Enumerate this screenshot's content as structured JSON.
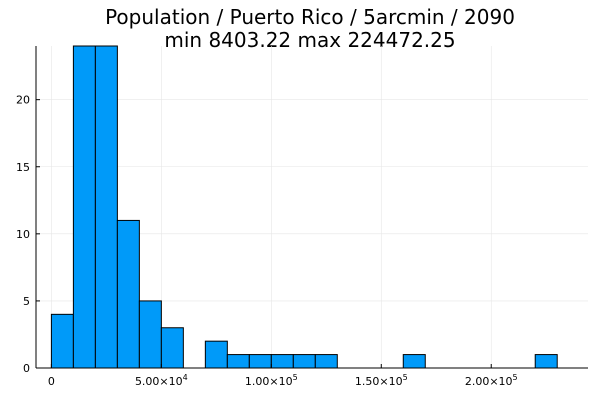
{
  "chart_data": {
    "type": "bar",
    "title": "Population / Puerto Rico / 5arcmin / 2090",
    "subtitle": "min 8403.22  max 224472.25",
    "xlabel": "",
    "ylabel": "",
    "xlim": [
      -7000,
      244000
    ],
    "ylim": [
      0,
      24
    ],
    "bin_width": 10000,
    "bins": [
      {
        "start": 0,
        "end": 10000,
        "count": 4
      },
      {
        "start": 10000,
        "end": 20000,
        "count": 24
      },
      {
        "start": 20000,
        "end": 30000,
        "count": 24
      },
      {
        "start": 30000,
        "end": 40000,
        "count": 11
      },
      {
        "start": 40000,
        "end": 50000,
        "count": 5
      },
      {
        "start": 50000,
        "end": 60000,
        "count": 3
      },
      {
        "start": 70000,
        "end": 80000,
        "count": 2
      },
      {
        "start": 80000,
        "end": 90000,
        "count": 1
      },
      {
        "start": 90000,
        "end": 100000,
        "count": 1
      },
      {
        "start": 100000,
        "end": 110000,
        "count": 1
      },
      {
        "start": 110000,
        "end": 120000,
        "count": 1
      },
      {
        "start": 120000,
        "end": 130000,
        "count": 1
      },
      {
        "start": 160000,
        "end": 170000,
        "count": 1
      },
      {
        "start": 220000,
        "end": 230000,
        "count": 1
      }
    ],
    "x_ticks": [
      {
        "value": 0,
        "mant": "0",
        "exp": ""
      },
      {
        "value": 50000,
        "mant": "5.00×10",
        "exp": "4"
      },
      {
        "value": 100000,
        "mant": "1.00×10",
        "exp": "5"
      },
      {
        "value": 150000,
        "mant": "1.50×10",
        "exp": "5"
      },
      {
        "value": 200000,
        "mant": "2.00×10",
        "exp": "5"
      }
    ],
    "y_ticks": [
      0,
      5,
      10,
      15,
      20
    ],
    "grid": true,
    "legend": "none",
    "colors": {
      "bar": "#009af9",
      "edge": "#000000",
      "grid": "#e6e6e6",
      "axis": "#000000"
    }
  }
}
